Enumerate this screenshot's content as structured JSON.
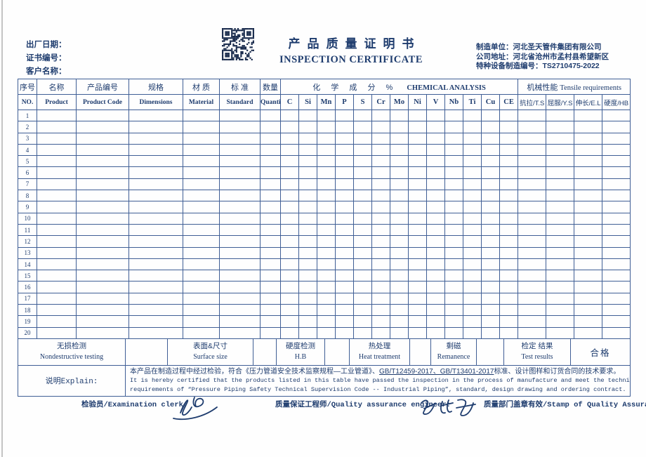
{
  "colors": {
    "ink": "#1e3c6e",
    "line": "#3f5e95"
  },
  "header": {
    "left_fields": [
      {
        "label": "出厂日期："
      },
      {
        "label": "证书编号："
      },
      {
        "label": "客户名称："
      }
    ],
    "qr_icon": "qr-code",
    "title_cn": "产品质量证明书",
    "title_en": "INSPECTION CERTIFICATE",
    "right_fields": [
      {
        "label": "制造单位：",
        "value": "河北圣天管件集团有限公司"
      },
      {
        "label": "公司地址：",
        "value": "河北省沧州市孟村县希望新区"
      },
      {
        "label": "特种设备制造编号：",
        "value": "TS2710475-2022"
      }
    ]
  },
  "table": {
    "columns_cn": [
      "序号",
      "名称",
      "产品编号",
      "规格",
      "材 质",
      "标 准",
      "数量"
    ],
    "columns_en": [
      "NO.",
      "Product",
      "Product Code",
      "Dimensions",
      "Material",
      "Standard",
      "Quantity"
    ],
    "chemical": {
      "title_cn": "化 学 成 分 %",
      "title_en": "CHEMICAL ANALYSIS",
      "elements": [
        "C",
        "Si",
        "Mn",
        "P",
        "S",
        "Cr",
        "Mo",
        "Ni",
        "V",
        "Nb",
        "Ti",
        "Cu",
        "CE"
      ]
    },
    "mechanical": {
      "title_cn": "机械性能",
      "title_en": "Tensile requirements",
      "columns": [
        "抗拉/T.S",
        "屈服/Y.S",
        "伸长/E.L",
        "硬度/HB"
      ]
    },
    "row_numbers": [
      "1",
      "2",
      "3",
      "4",
      "5",
      "6",
      "7",
      "8",
      "9",
      "10",
      "11",
      "12",
      "13",
      "14",
      "15",
      "16",
      "17",
      "18",
      "19",
      "20"
    ]
  },
  "summary": {
    "nde_cn": "无损检测",
    "nde_en": "Nondestructive testing",
    "nde_value": "",
    "surface_cn": "表面&尺寸",
    "surface_en": "Surface size",
    "surface_value": "",
    "hardness_cn": "硬度检测",
    "hardness_en": "H.B",
    "hardness_value": "",
    "heat_cn": "热处理",
    "heat_en": "Heat treatment",
    "heat_value": "",
    "remanence_cn": "剩磁",
    "remanence_en": "Remanence",
    "remanence_value": "",
    "result_cn": "检定 结果",
    "result_en": "Test results",
    "result_value": "合格"
  },
  "explain": {
    "label": "说明Explain:",
    "cn_pre": "本产品在制造过程中经过检验，符合《压力管道安全技术监察规程—工业管道》、",
    "cn_underline": "GB/T12459-2017、GB/T13401-2017",
    "cn_post": "标准、设计图样和订货合同的技术要求。",
    "en_line1": "It is hereby certified that the products listed in this table have passed the inspection in the process of manufacture and meet the technical",
    "en_line2": "requirements of “Pressure Piping Safety Technical Supervision Code -- Industrial Piping”, standard, design drawing and ordering contract."
  },
  "signatures": {
    "examination_label": "检验员/Examination clerk:",
    "engineer_label": "质量保证工程师/Quality assurance engineer:",
    "stamp_label": "质量部门盖章有效/Stamp of Quality Assurance"
  }
}
